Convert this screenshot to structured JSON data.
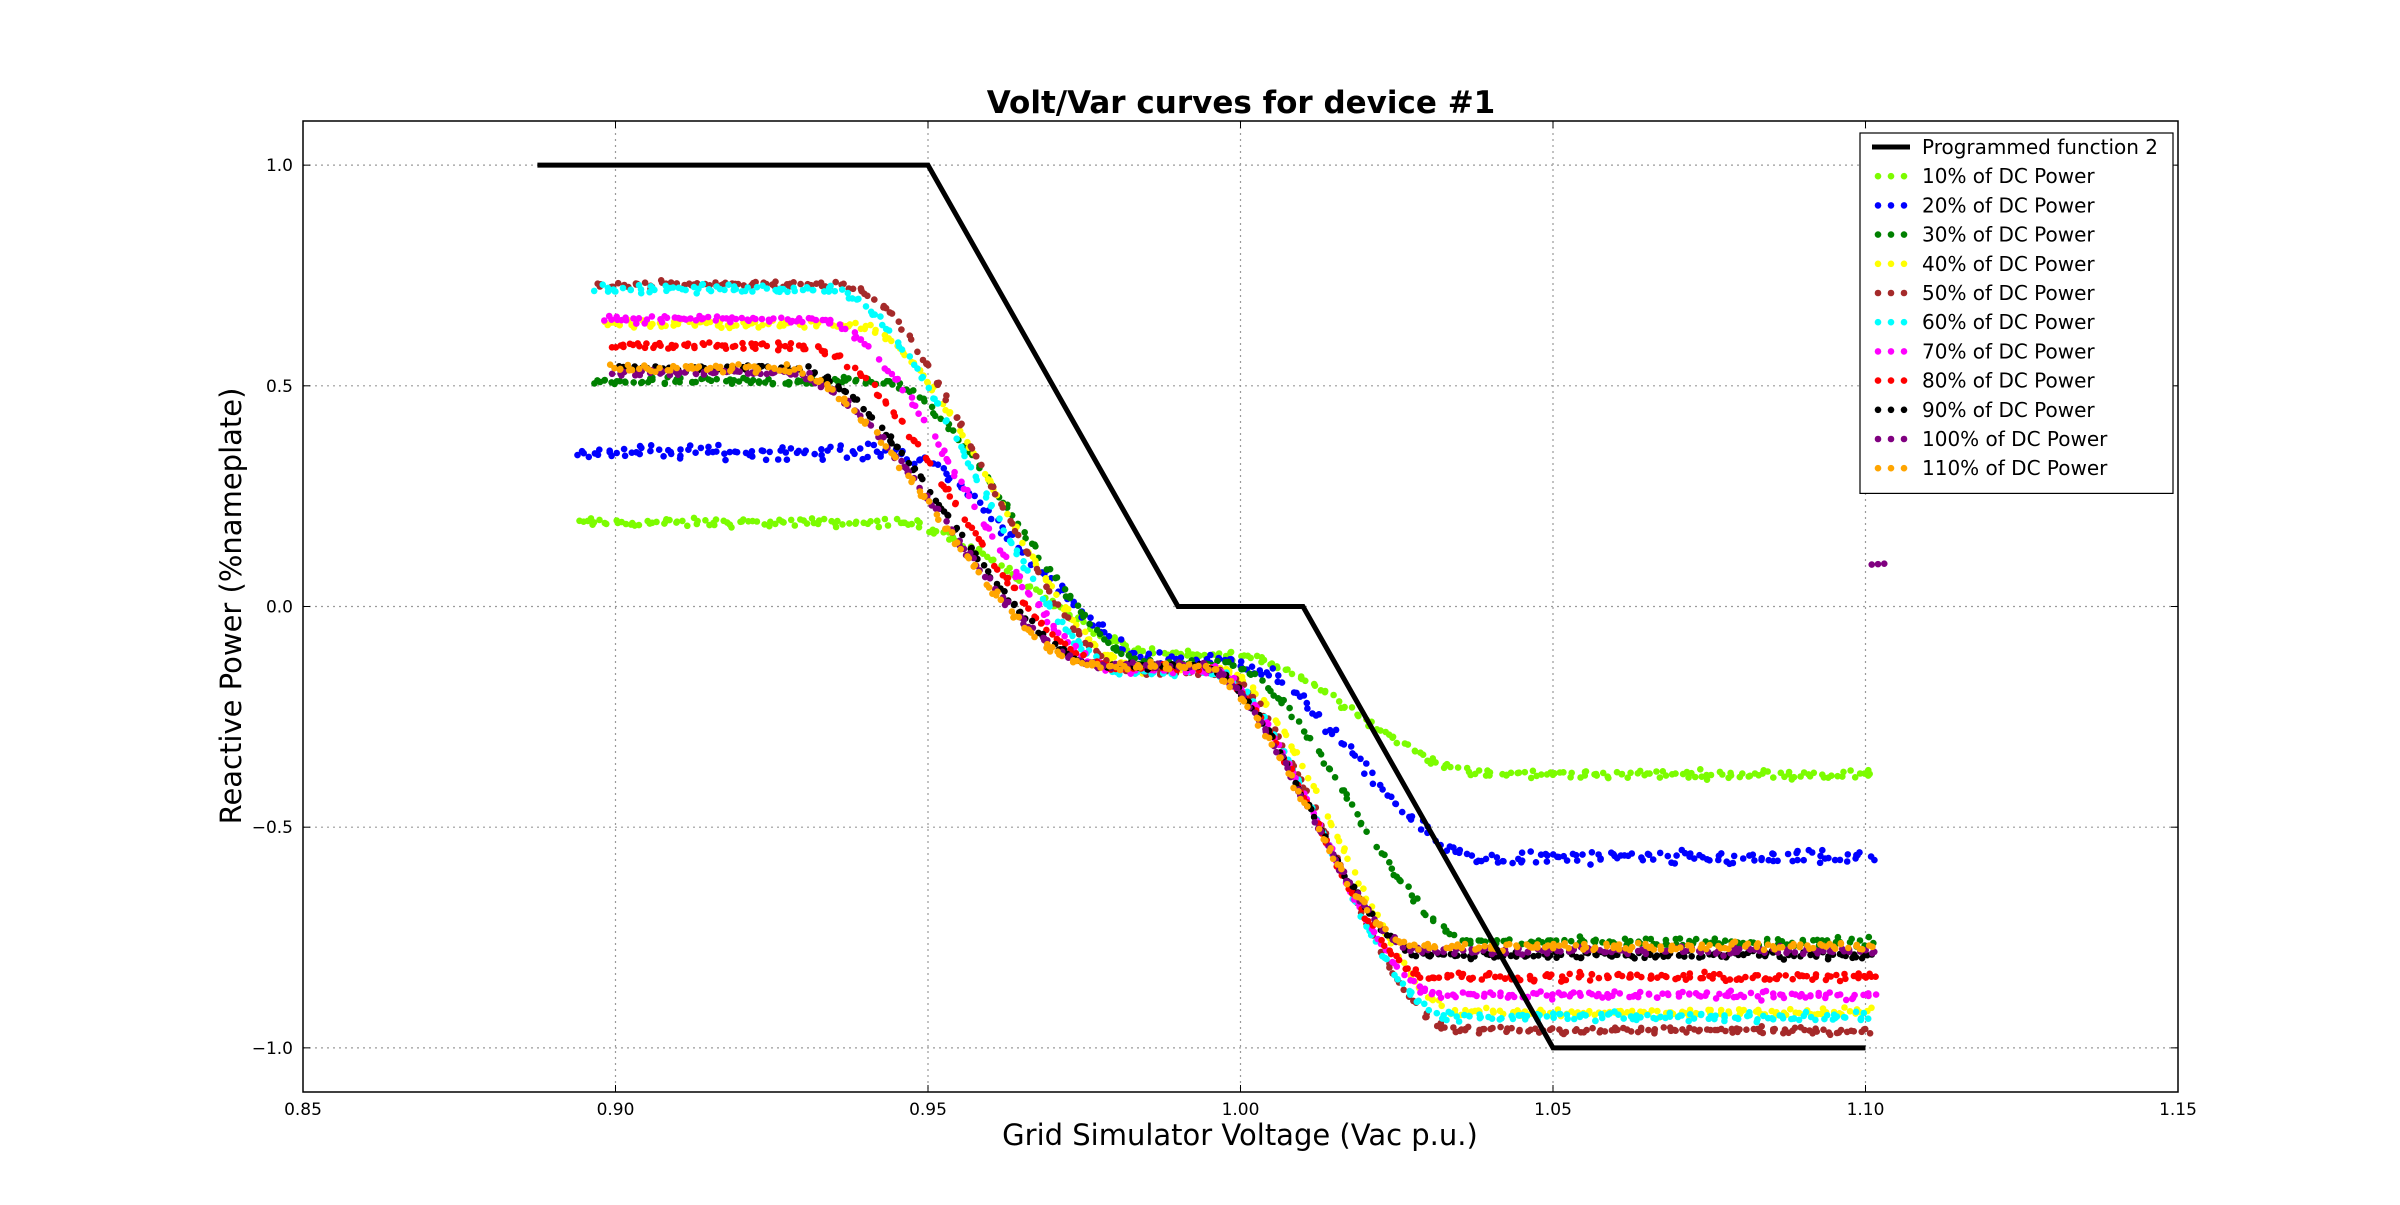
{
  "chart_data": {
    "type": "scatter",
    "title": "Volt/Var curves for device #1",
    "xlabel": "Grid Simulator Voltage (Vac p.u.)",
    "ylabel": "Reactive Power (%nameplate)",
    "xlim": [
      0.85,
      1.15
    ],
    "ylim": [
      -1.1,
      1.1
    ],
    "x_ticks": [
      0.85,
      0.9,
      0.95,
      1.0,
      1.05,
      1.1,
      1.15
    ],
    "x_tick_labels": [
      "0.85",
      "0.90",
      "0.95",
      "1.00",
      "1.05",
      "1.10",
      "1.15"
    ],
    "y_ticks": [
      1.0,
      0.5,
      0.0,
      -0.5,
      -1.0
    ],
    "y_tick_labels": [
      "1.0",
      "0.5",
      "0.0",
      "−0.5",
      "−1.0"
    ],
    "grid": true,
    "legend_position": "top-right",
    "programmed_curve": {
      "name": "Programmed function 2",
      "color": "#000000",
      "x": [
        0.8875,
        0.95,
        0.99,
        1.01,
        1.05,
        1.1
      ],
      "y": [
        1.0,
        1.0,
        0.0,
        0.0,
        -1.0,
        -1.0
      ]
    },
    "series": [
      {
        "name": "10% of DC Power",
        "color": "#7cfc00",
        "x_start": 0.894,
        "x_end": 1.101,
        "high": 0.19,
        "low": -0.38,
        "offset": 0.011,
        "noise": 0.012
      },
      {
        "name": "20% of DC Power",
        "color": "#0000ff",
        "x_start": 0.894,
        "x_end": 1.101,
        "high": 0.35,
        "low": -0.57,
        "offset": 0.01,
        "noise": 0.02
      },
      {
        "name": "30% of DC Power",
        "color": "#008000",
        "x_start": 0.896,
        "x_end": 1.101,
        "high": 0.51,
        "low": -0.76,
        "offset": 0.008,
        "noise": 0.012
      },
      {
        "name": "40% of DC Power",
        "color": "#ffff00",
        "x_start": 0.898,
        "x_end": 1.101,
        "high": 0.64,
        "low": -0.92,
        "offset": 0.004,
        "noise": 0.012
      },
      {
        "name": "50% of DC Power",
        "color": "#a52a2a",
        "x_start": 0.897,
        "x_end": 1.101,
        "high": 0.73,
        "low": -0.96,
        "offset": 0.002,
        "noise": 0.01
      },
      {
        "name": "60% of DC Power",
        "color": "#00ffff",
        "x_start": 0.897,
        "x_end": 1.101,
        "high": 0.72,
        "low": -0.93,
        "offset": 0.0,
        "noise": 0.012
      },
      {
        "name": "70% of DC Power",
        "color": "#ff00ff",
        "x_start": 0.898,
        "x_end": 1.101,
        "high": 0.65,
        "low": -0.88,
        "offset": -0.002,
        "noise": 0.012
      },
      {
        "name": "80% of DC Power",
        "color": "#ff0000",
        "x_start": 0.899,
        "x_end": 1.102,
        "high": 0.59,
        "low": -0.84,
        "offset": -0.004,
        "noise": 0.012
      },
      {
        "name": "90% of DC Power",
        "color": "#000000",
        "x_start": 0.9,
        "x_end": 1.101,
        "high": 0.54,
        "low": -0.79,
        "offset": -0.006,
        "noise": 0.01
      },
      {
        "name": "100% of DC Power",
        "color": "#800080",
        "x_start": 0.9,
        "x_end": 1.101,
        "high": 0.53,
        "low": -0.78,
        "offset": -0.007,
        "noise": 0.01
      },
      {
        "name": "110% of DC Power",
        "color": "#ffa500",
        "x_start": 0.899,
        "x_end": 1.101,
        "high": 0.54,
        "low": -0.77,
        "offset": -0.008,
        "noise": 0.012
      }
    ],
    "outlier_points": {
      "color": "#800080",
      "x": [
        1.101,
        1.102,
        1.103
      ],
      "y": [
        0.095,
        0.096,
        0.097
      ]
    }
  }
}
